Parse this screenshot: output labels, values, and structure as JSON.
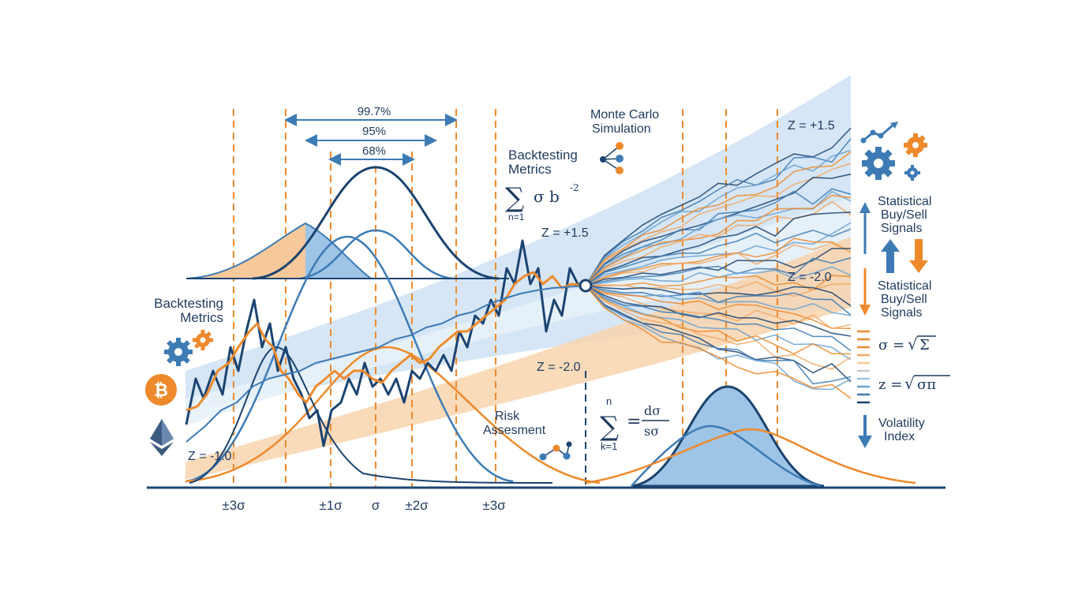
{
  "palette": {
    "navy": "#1b4471",
    "blue": "#3d7bb5",
    "light_blue": "#b9d5ee",
    "orange": "#ee8a2c",
    "light_orange": "#f7c99a",
    "text": "#1f3a5f"
  },
  "interval_labels": [
    "99.7%",
    "95%",
    "68%"
  ],
  "axis_tick_labels": [
    "±3σ",
    "±1σ",
    "σ",
    "±2σ",
    "±3σ"
  ],
  "labels": {
    "monte_carlo_line1": "Monte Carlo",
    "monte_carlo_line2": "Simulation",
    "backtesting_top_line1": "Backtesting",
    "backtesting_top_line2": "Metrics",
    "backtesting_left_line1": "Backtesting",
    "backtesting_left_line2": "Metrics",
    "formula_sum_1": "σ b",
    "formula_sum_1_exp": "-2",
    "formula_sum_1_index": "n=1",
    "z_top_right": "Z = +1.5",
    "z_mid": "Z = +1.5",
    "z_right_lower": "Z = -2.0",
    "z_center_lower": "Z = -2.0",
    "z_left": "Z = -1.0",
    "risk_line1": "Risk",
    "risk_line2": "Assesment",
    "formula_sum_2_top": "n",
    "formula_sum_2_index": "k=1",
    "formula_sum_2_eq": "=",
    "formula_sum_2_num": "dσ",
    "formula_sum_2_den": "sσ"
  },
  "legend": {
    "signals_1": [
      "Statistical",
      "Buy/Sell",
      "Signals"
    ],
    "signals_2": [
      "Statistical",
      "Buy/Sell",
      "Signals"
    ],
    "sigma_formula_left": "σ = ",
    "sigma_formula_radicand": "Σ",
    "z_formula_left": "z = ",
    "z_formula_radicand": "σπ",
    "volatility_line1": "Volatility",
    "volatility_line2": "Index"
  },
  "icons": [
    "bitcoin-icon",
    "ethereum-icon",
    "gears-icon",
    "trend-gears-icon",
    "network-icon",
    "arrow-up-icon",
    "arrow-down-icon"
  ]
}
